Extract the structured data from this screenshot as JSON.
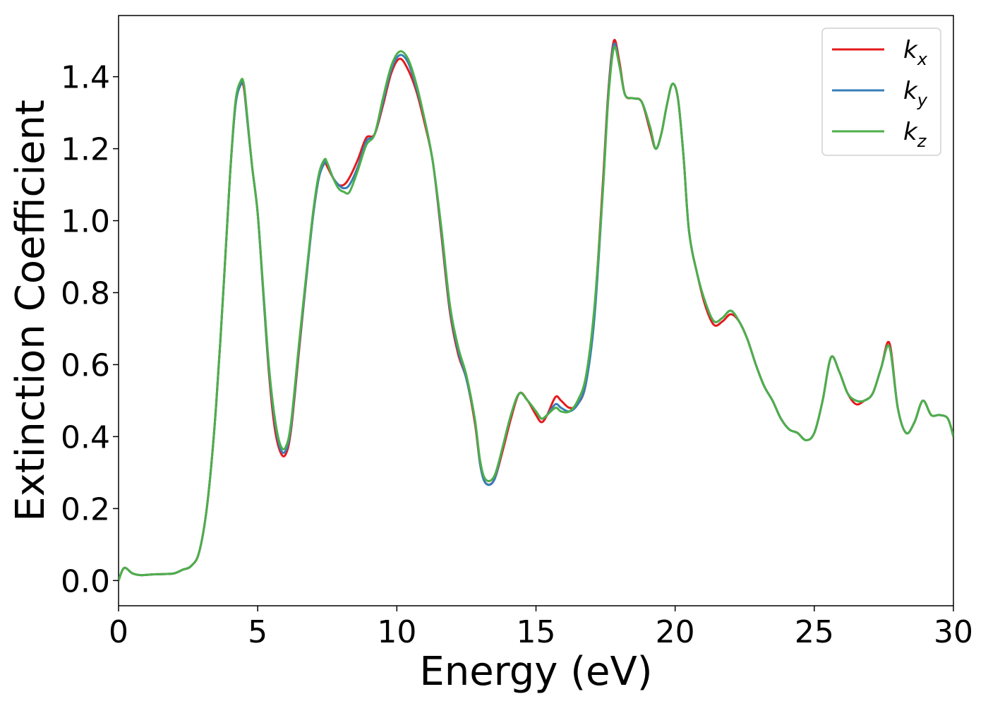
{
  "chart_data": {
    "type": "line",
    "title": "",
    "xlabel": "Energy (eV)",
    "ylabel": "Extinction Coefficient",
    "xlim": [
      0,
      30
    ],
    "ylim": [
      -0.07,
      1.57
    ],
    "xticks": [
      0,
      5,
      10,
      15,
      20,
      25,
      30
    ],
    "xtick_labels": [
      "0",
      "5",
      "10",
      "15",
      "20",
      "25",
      "30"
    ],
    "yticks": [
      0.0,
      0.2,
      0.4,
      0.6,
      0.8,
      1.0,
      1.2,
      1.4
    ],
    "ytick_labels": [
      "0.0",
      "0.2",
      "0.4",
      "0.6",
      "0.8",
      "1.0",
      "1.2",
      "1.4"
    ],
    "grid": false,
    "legend_position": "top-right",
    "x": [
      0,
      0.2,
      0.5,
      0.8,
      1.2,
      1.6,
      2.0,
      2.3,
      2.6,
      2.9,
      3.2,
      3.5,
      3.8,
      4.0,
      4.2,
      4.4,
      4.5,
      4.6,
      4.8,
      5.0,
      5.2,
      5.4,
      5.6,
      5.8,
      6.0,
      6.2,
      6.5,
      6.8,
      7.0,
      7.2,
      7.4,
      7.5,
      7.7,
      7.9,
      8.1,
      8.3,
      8.6,
      8.9,
      9.2,
      9.5,
      9.8,
      10.1,
      10.4,
      10.7,
      11.0,
      11.3,
      11.6,
      11.9,
      12.2,
      12.5,
      12.8,
      13.0,
      13.2,
      13.5,
      13.8,
      14.1,
      14.4,
      14.7,
      15.0,
      15.2,
      15.4,
      15.7,
      15.9,
      16.2,
      16.5,
      16.8,
      17.1,
      17.4,
      17.6,
      17.8,
      18.0,
      18.2,
      18.5,
      18.8,
      19.1,
      19.3,
      19.5,
      19.7,
      19.9,
      20.1,
      20.3,
      20.5,
      20.8,
      21.1,
      21.4,
      21.7,
      22.0,
      22.3,
      22.6,
      22.9,
      23.2,
      23.5,
      23.8,
      24.1,
      24.4,
      24.7,
      25.0,
      25.3,
      25.6,
      25.9,
      26.2,
      26.5,
      26.8,
      27.1,
      27.4,
      27.7,
      28.0,
      28.3,
      28.6,
      28.9,
      29.2,
      29.5,
      29.8,
      30.0
    ],
    "series": [
      {
        "name": "k_x",
        "label_main": "k",
        "label_sub": "x",
        "color": "#e41a1c",
        "values": [
          0.0,
          0.035,
          0.02,
          0.015,
          0.017,
          0.018,
          0.02,
          0.03,
          0.04,
          0.08,
          0.22,
          0.48,
          0.85,
          1.12,
          1.32,
          1.38,
          1.37,
          1.3,
          1.15,
          1.02,
          0.8,
          0.58,
          0.43,
          0.36,
          0.35,
          0.42,
          0.65,
          0.88,
          1.02,
          1.12,
          1.16,
          1.15,
          1.12,
          1.1,
          1.1,
          1.12,
          1.17,
          1.23,
          1.24,
          1.32,
          1.41,
          1.45,
          1.42,
          1.36,
          1.27,
          1.16,
          0.96,
          0.75,
          0.63,
          0.56,
          0.44,
          0.32,
          0.27,
          0.28,
          0.36,
          0.45,
          0.52,
          0.5,
          0.46,
          0.44,
          0.46,
          0.51,
          0.5,
          0.48,
          0.49,
          0.55,
          0.75,
          1.1,
          1.36,
          1.5,
          1.44,
          1.35,
          1.34,
          1.33,
          1.25,
          1.2,
          1.24,
          1.32,
          1.38,
          1.34,
          1.18,
          0.97,
          0.85,
          0.76,
          0.71,
          0.72,
          0.74,
          0.72,
          0.67,
          0.6,
          0.54,
          0.5,
          0.45,
          0.42,
          0.41,
          0.39,
          0.41,
          0.5,
          0.62,
          0.58,
          0.52,
          0.49,
          0.5,
          0.52,
          0.59,
          0.66,
          0.48,
          0.41,
          0.44,
          0.5,
          0.46,
          0.46,
          0.45,
          0.4
        ]
      },
      {
        "name": "k_y",
        "label_main": "k",
        "label_sub": "y",
        "color": "#377eb8",
        "values": [
          0.0,
          0.035,
          0.02,
          0.015,
          0.017,
          0.018,
          0.02,
          0.03,
          0.04,
          0.08,
          0.22,
          0.48,
          0.85,
          1.12,
          1.32,
          1.38,
          1.38,
          1.3,
          1.15,
          1.02,
          0.8,
          0.59,
          0.45,
          0.37,
          0.36,
          0.43,
          0.66,
          0.88,
          1.02,
          1.12,
          1.16,
          1.16,
          1.12,
          1.1,
          1.09,
          1.1,
          1.15,
          1.22,
          1.24,
          1.33,
          1.42,
          1.46,
          1.44,
          1.37,
          1.28,
          1.16,
          0.97,
          0.76,
          0.64,
          0.56,
          0.45,
          0.32,
          0.27,
          0.28,
          0.37,
          0.46,
          0.52,
          0.5,
          0.47,
          0.45,
          0.46,
          0.49,
          0.48,
          0.47,
          0.49,
          0.55,
          0.73,
          1.08,
          1.35,
          1.49,
          1.43,
          1.35,
          1.34,
          1.33,
          1.26,
          1.2,
          1.24,
          1.32,
          1.38,
          1.34,
          1.18,
          0.97,
          0.85,
          0.77,
          0.72,
          0.73,
          0.75,
          0.72,
          0.67,
          0.6,
          0.54,
          0.5,
          0.45,
          0.42,
          0.41,
          0.39,
          0.41,
          0.5,
          0.62,
          0.58,
          0.52,
          0.5,
          0.5,
          0.52,
          0.59,
          0.65,
          0.48,
          0.41,
          0.44,
          0.5,
          0.46,
          0.46,
          0.45,
          0.4
        ]
      },
      {
        "name": "k_z",
        "label_main": "k",
        "label_sub": "z",
        "color": "#4daf4a",
        "values": [
          0.0,
          0.035,
          0.02,
          0.015,
          0.017,
          0.018,
          0.02,
          0.03,
          0.04,
          0.08,
          0.22,
          0.48,
          0.85,
          1.12,
          1.33,
          1.39,
          1.38,
          1.31,
          1.15,
          1.02,
          0.81,
          0.6,
          0.46,
          0.38,
          0.37,
          0.44,
          0.67,
          0.89,
          1.03,
          1.13,
          1.17,
          1.16,
          1.12,
          1.09,
          1.08,
          1.08,
          1.14,
          1.21,
          1.24,
          1.34,
          1.43,
          1.47,
          1.45,
          1.38,
          1.28,
          1.16,
          0.98,
          0.77,
          0.65,
          0.57,
          0.45,
          0.33,
          0.28,
          0.29,
          0.37,
          0.46,
          0.52,
          0.5,
          0.47,
          0.45,
          0.46,
          0.48,
          0.47,
          0.47,
          0.5,
          0.57,
          0.76,
          1.08,
          1.34,
          1.48,
          1.43,
          1.35,
          1.34,
          1.33,
          1.26,
          1.2,
          1.24,
          1.32,
          1.38,
          1.34,
          1.18,
          0.97,
          0.85,
          0.77,
          0.72,
          0.73,
          0.75,
          0.72,
          0.67,
          0.6,
          0.54,
          0.5,
          0.45,
          0.42,
          0.41,
          0.39,
          0.41,
          0.5,
          0.62,
          0.58,
          0.52,
          0.5,
          0.5,
          0.52,
          0.59,
          0.65,
          0.48,
          0.41,
          0.44,
          0.5,
          0.46,
          0.46,
          0.45,
          0.4
        ]
      }
    ]
  }
}
